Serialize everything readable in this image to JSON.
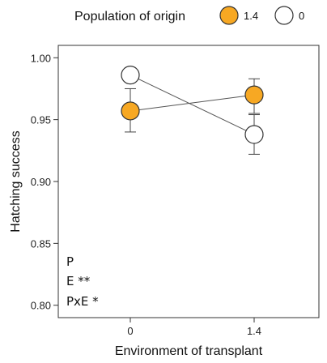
{
  "chart_data": {
    "type": "line",
    "xlabel": "Environment of transplant",
    "ylabel": "Hatching success",
    "x_categories": [
      "0",
      "1.4"
    ],
    "ylim": [
      0.79,
      1.01
    ],
    "yticks": [
      0.8,
      0.85,
      0.9,
      0.95,
      1.0
    ],
    "ytick_labels": [
      "0.80",
      "0.85",
      "0.90",
      "0.95",
      "1.00"
    ],
    "legend": {
      "title": "Population of origin",
      "placement": "top",
      "entries": [
        "1.4",
        "0"
      ]
    },
    "series": [
      {
        "name": "1.4",
        "color": "#f7a823",
        "values": [
          0.957,
          0.97
        ],
        "err_low": [
          0.94,
          0.955
        ],
        "err_high": [
          0.975,
          0.983
        ]
      },
      {
        "name": "0",
        "color": "#ffffff",
        "values": [
          0.986,
          0.938
        ],
        "err_low": [
          0.986,
          0.922
        ],
        "err_high": [
          0.986,
          0.954
        ]
      }
    ],
    "annotations": [
      "P",
      "E **",
      "PxE *"
    ],
    "grid": false
  }
}
